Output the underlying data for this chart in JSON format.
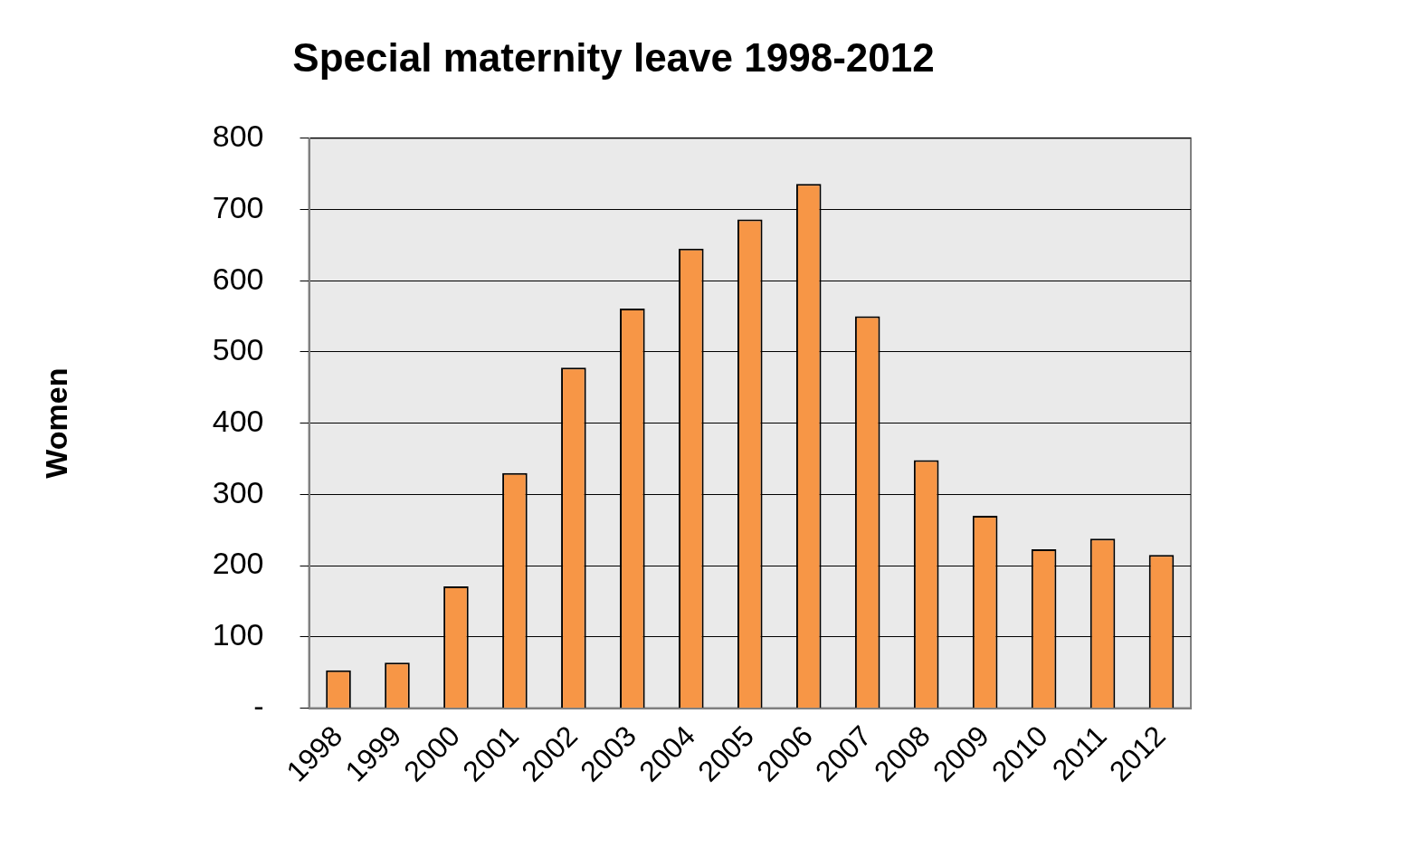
{
  "chart_data": {
    "type": "bar",
    "title": "Special maternity leave 1998-2012",
    "ylabel": "Women",
    "categories": [
      "1998",
      "1999",
      "2000",
      "2001",
      "2002",
      "2003",
      "2004",
      "2005",
      "2006",
      "2007",
      "2008",
      "2009",
      "2010",
      "2011",
      "2012"
    ],
    "values": [
      53,
      64,
      171,
      330,
      478,
      561,
      645,
      686,
      736,
      550,
      348,
      270,
      223,
      238,
      215
    ],
    "color": "#f79646",
    "ylim": [
      0,
      800
    ],
    "yticks": [
      {
        "value": 0,
        "label": "-"
      },
      100,
      200,
      300,
      400,
      500,
      600,
      700,
      800
    ],
    "grid": "y",
    "legend": false
  }
}
